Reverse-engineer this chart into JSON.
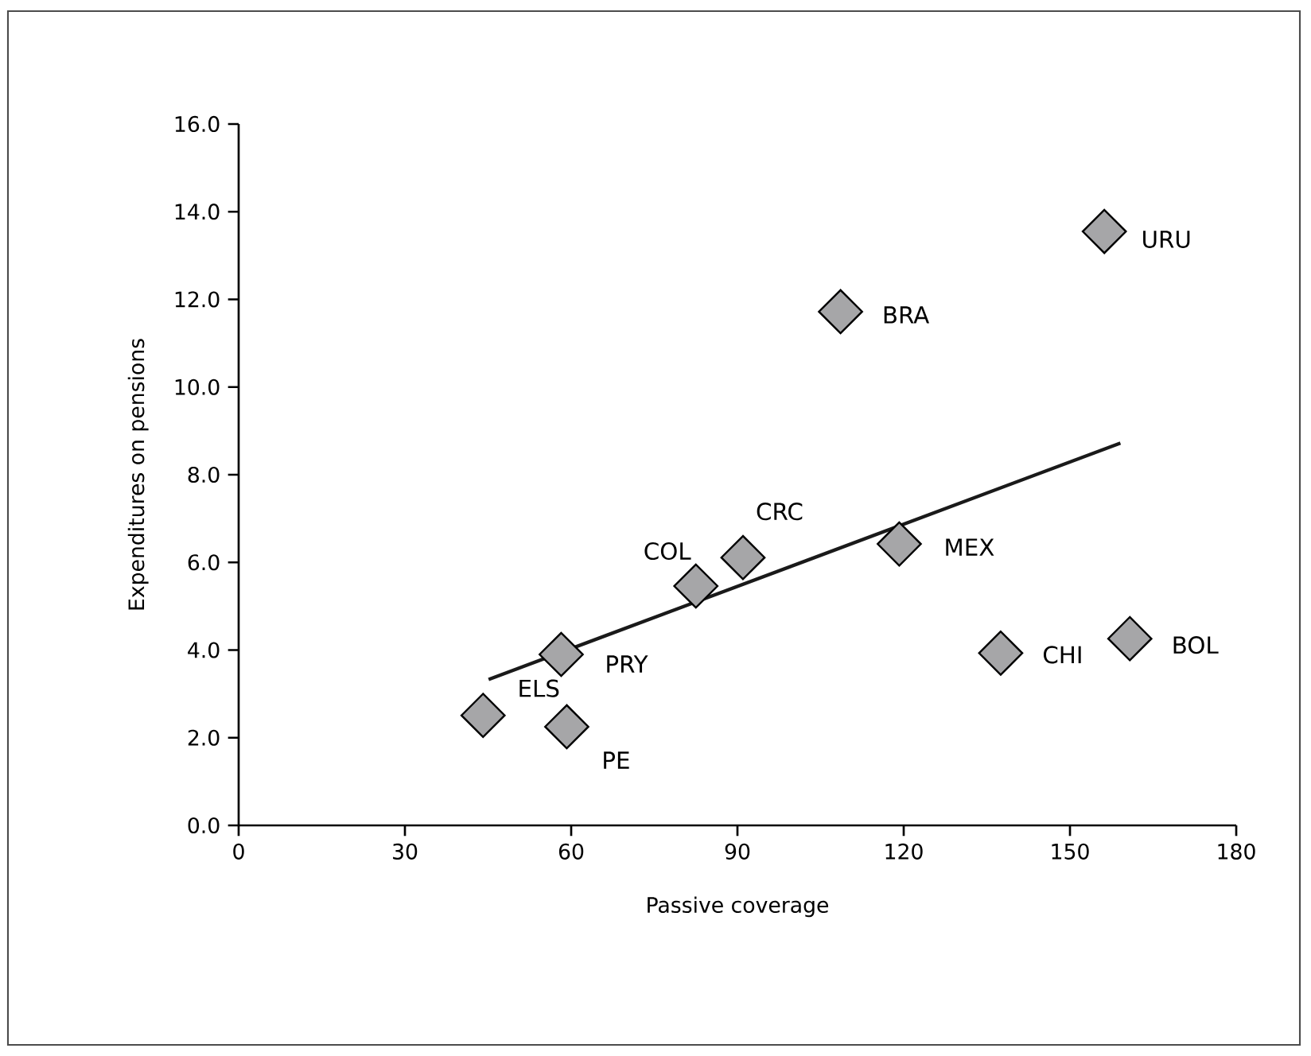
{
  "chart_data": {
    "type": "scatter",
    "xlabel": "Passive coverage",
    "ylabel": "Expenditures on pensions",
    "xlim": [
      0,
      180
    ],
    "xticks": [
      0,
      30,
      60,
      90,
      120,
      150,
      180
    ],
    "ylim": [
      0,
      16
    ],
    "yticks": [
      {
        "value": 0,
        "label": "0.0"
      },
      {
        "value": 2,
        "label": "2.0"
      },
      {
        "value": 4,
        "label": "4.0"
      },
      {
        "value": 6,
        "label": "6.0"
      },
      {
        "value": 8,
        "label": "8.0"
      },
      {
        "value": 10,
        "label": "10.0"
      },
      {
        "value": 12,
        "label": "12.0"
      },
      {
        "value": 14,
        "label": "14.0"
      },
      {
        "value": 16,
        "label": "16.0"
      }
    ],
    "series": [
      {
        "marker": "diamond",
        "color": "#a6a6a8",
        "x": [
          156.2,
          108.6,
          91.0,
          82.5,
          119.2,
          58.2,
          44.1,
          137.5,
          160.8,
          59.2
        ],
        "values": [
          13.55,
          11.72,
          6.11,
          5.46,
          6.42,
          3.9,
          2.51,
          3.93,
          4.26,
          2.25
        ]
      },
      {
        "type": "line",
        "marker": "none",
        "color": "#1a1a1a",
        "x": [
          45.1,
          159.1
        ],
        "values": [
          3.33,
          8.72
        ]
      }
    ],
    "annotations": [
      {
        "text": "URU",
        "x": 156.2,
        "y": 13.55
      },
      {
        "text": "BRA",
        "x": 108.6,
        "y": 11.72
      },
      {
        "text": "CRC",
        "x": 91.0,
        "y": 6.11
      },
      {
        "text": "COL",
        "x": 82.5,
        "y": 5.46
      },
      {
        "text": "MEX",
        "x": 119.2,
        "y": 6.42
      },
      {
        "text": "PRY",
        "x": 58.2,
        "y": 3.9
      },
      {
        "text": "ELS",
        "x": 44.1,
        "y": 2.51
      },
      {
        "text": "CHI",
        "x": 137.5,
        "y": 3.93
      },
      {
        "text": "BOL",
        "x": 160.8,
        "y": 4.26
      },
      {
        "text": "PE",
        "x": 59.2,
        "y": 2.25
      }
    ],
    "grid": false,
    "legend": false
  }
}
